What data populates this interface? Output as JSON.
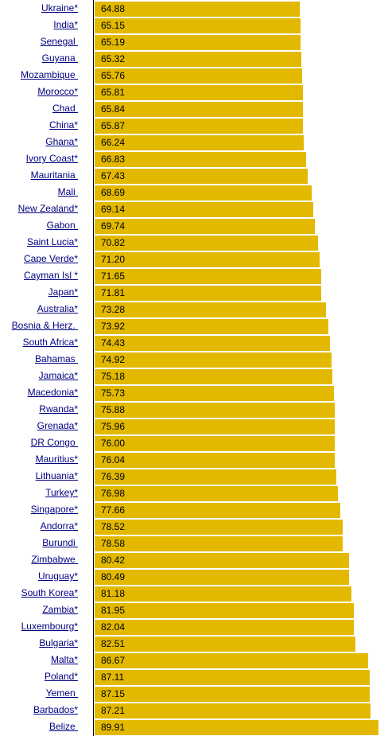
{
  "chart_data": {
    "type": "bar",
    "orientation": "horizontal",
    "bar_color": "#E2B900",
    "label_color": "#000080",
    "categories": [
      "Ukraine*",
      "India*",
      "Senegal ",
      "Guyana ",
      "Mozambique ",
      "Morocco*",
      "Chad ",
      "China*",
      "Ghana*",
      "Ivory Coast*",
      "Mauritania ",
      "Mali ",
      "New Zealand*",
      "Gabon ",
      "Saint Lucia*",
      "Cape Verde*",
      "Cayman Isl *",
      "Japan*",
      "Australia*",
      "Bosnia & Herz. ",
      "South Africa*",
      "Bahamas ",
      "Jamaica*",
      "Macedonia*",
      "Rwanda*",
      "Grenada*",
      "DR Congo ",
      "Mauritius*",
      "Lithuania*",
      "Turkey*",
      "Singapore*",
      "Andorra*",
      "Burundi ",
      "Zimbabwe ",
      "Uruguay*",
      "South Korea*",
      "Zambia*",
      "Luxembourg*",
      "Bulgaria*",
      "Malta*",
      "Poland*",
      "Yemen ",
      "Barbados*",
      "Belize "
    ],
    "value_labels": [
      "64.88",
      "65.15",
      "65.19",
      "65.32",
      "65.76",
      "65.81",
      "65.84",
      "65.87",
      "66.24",
      "66.83",
      "67.43",
      "68.69",
      "69.14",
      "69.74",
      "70.82",
      "71.20",
      "71.65",
      "71.81",
      "73.28",
      "73.92",
      "74.43",
      "74.92",
      "75.18",
      "75.73",
      "75.88",
      "75.96",
      "76.00",
      "76.04",
      "76.39",
      "76.98",
      "77.66",
      "78.52",
      "78.58",
      "80.42",
      "80.49",
      "81.18",
      "81.95",
      "82.04",
      "82.51",
      "86.67",
      "87.11",
      "87.15",
      "87.21",
      "89.91"
    ],
    "values": [
      64.88,
      65.15,
      65.19,
      65.32,
      65.76,
      65.81,
      65.84,
      65.87,
      66.24,
      66.83,
      67.43,
      68.69,
      69.14,
      69.74,
      70.82,
      71.2,
      71.65,
      71.81,
      73.28,
      73.92,
      74.43,
      74.92,
      75.18,
      75.73,
      75.88,
      75.96,
      76.0,
      76.04,
      76.39,
      76.98,
      77.66,
      78.52,
      78.58,
      80.42,
      80.49,
      81.18,
      81.95,
      82.04,
      82.51,
      86.67,
      87.11,
      87.15,
      87.21,
      89.91
    ],
    "xlim": [
      0,
      91.84
    ],
    "grid": false,
    "legend": "none"
  }
}
